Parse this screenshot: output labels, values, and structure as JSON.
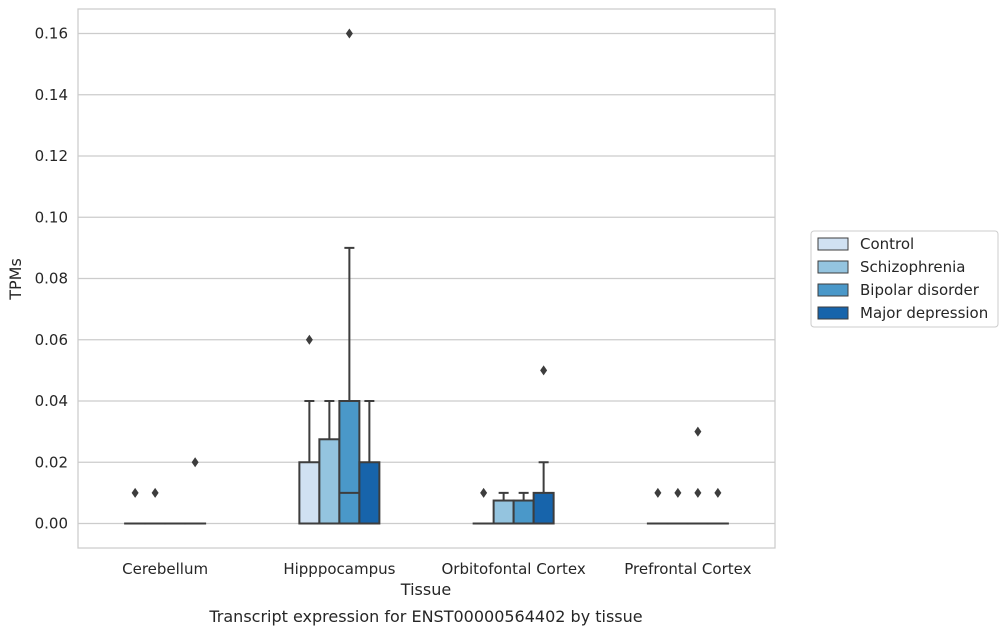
{
  "chart_data": {
    "type": "box",
    "xlabel": "Tissue",
    "ylabel": "TPMs",
    "caption": "Transcript expression for ENST00000564402 by tissue",
    "ylim": [
      -0.008,
      0.168
    ],
    "yticks": [
      0.0,
      0.02,
      0.04,
      0.06,
      0.08,
      0.1,
      0.12,
      0.14,
      0.16
    ],
    "ytick_labels": [
      "0.00",
      "0.02",
      "0.04",
      "0.06",
      "0.08",
      "0.10",
      "0.12",
      "0.14",
      "0.16"
    ],
    "grid": "horizontal",
    "legend_placement": "right",
    "categories": [
      "Cerebellum",
      "Hipppocampus",
      "Orbitofontal Cortex",
      "Prefrontal Cortex"
    ],
    "series": [
      {
        "name": "Control",
        "color": "#d0e1f2",
        "boxes": [
          {
            "q1": 0,
            "median": 0,
            "q3": 0,
            "whisker_low": 0,
            "whisker_high": 0,
            "outliers": [
              0.01
            ]
          },
          {
            "q1": 0,
            "median": 0,
            "q3": 0.02,
            "whisker_low": 0,
            "whisker_high": 0.04,
            "outliers": [
              0.06
            ]
          },
          {
            "q1": 0,
            "median": 0,
            "q3": 0,
            "whisker_low": 0,
            "whisker_high": 0,
            "outliers": [
              0.01
            ]
          },
          {
            "q1": 0,
            "median": 0,
            "q3": 0,
            "whisker_low": 0,
            "whisker_high": 0,
            "outliers": [
              0.01
            ]
          }
        ]
      },
      {
        "name": "Schizophrenia",
        "color": "#94c4df",
        "boxes": [
          {
            "q1": 0,
            "median": 0,
            "q3": 0,
            "whisker_low": 0,
            "whisker_high": 0,
            "outliers": [
              0.01
            ]
          },
          {
            "q1": 0,
            "median": 0,
            "q3": 0.0275,
            "whisker_low": 0,
            "whisker_high": 0.04,
            "outliers": []
          },
          {
            "q1": 0,
            "median": 0,
            "q3": 0.0075,
            "whisker_low": 0,
            "whisker_high": 0.01,
            "outliers": []
          },
          {
            "q1": 0,
            "median": 0,
            "q3": 0,
            "whisker_low": 0,
            "whisker_high": 0,
            "outliers": [
              0.01
            ]
          }
        ]
      },
      {
        "name": "Bipolar disorder",
        "color": "#4a98c9",
        "boxes": [
          {
            "q1": 0,
            "median": 0,
            "q3": 0,
            "whisker_low": 0,
            "whisker_high": 0,
            "outliers": []
          },
          {
            "q1": 0,
            "median": 0.01,
            "q3": 0.04,
            "whisker_low": 0,
            "whisker_high": 0.09,
            "outliers": [
              0.16
            ]
          },
          {
            "q1": 0,
            "median": 0,
            "q3": 0.0075,
            "whisker_low": 0,
            "whisker_high": 0.01,
            "outliers": []
          },
          {
            "q1": 0,
            "median": 0,
            "q3": 0,
            "whisker_low": 0,
            "whisker_high": 0,
            "outliers": [
              0.01,
              0.03
            ]
          }
        ]
      },
      {
        "name": "Major depression",
        "color": "#1764ab",
        "boxes": [
          {
            "q1": 0,
            "median": 0,
            "q3": 0,
            "whisker_low": 0,
            "whisker_high": 0,
            "outliers": [
              0.02
            ]
          },
          {
            "q1": 0,
            "median": 0,
            "q3": 0.02,
            "whisker_low": 0,
            "whisker_high": 0.04,
            "outliers": []
          },
          {
            "q1": 0,
            "median": 0,
            "q3": 0.01,
            "whisker_low": 0,
            "whisker_high": 0.02,
            "outliers": [
              0.05
            ]
          },
          {
            "q1": 0,
            "median": 0,
            "q3": 0,
            "whisker_low": 0,
            "whisker_high": 0,
            "outliers": [
              0.01
            ]
          }
        ]
      }
    ]
  }
}
